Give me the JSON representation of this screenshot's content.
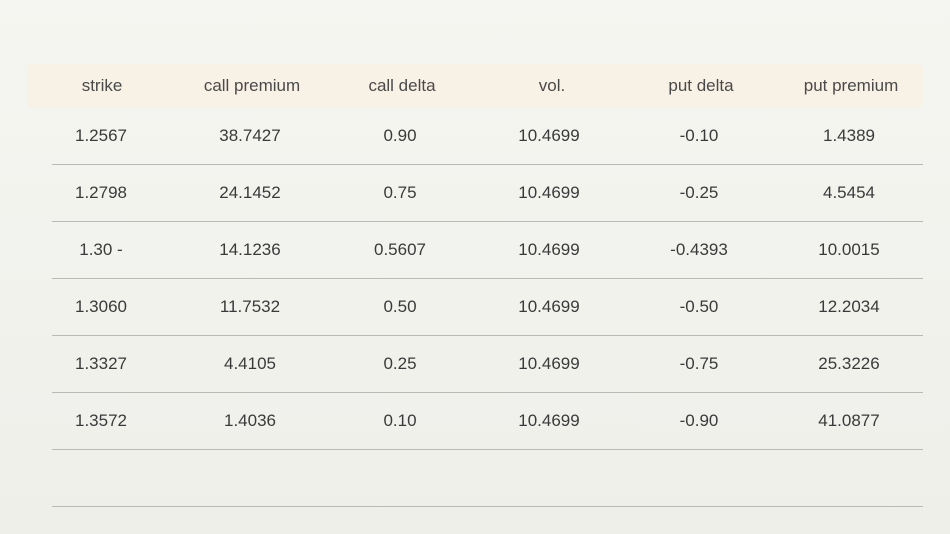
{
  "chart_data": {
    "type": "table",
    "columns": [
      "strike",
      "call premium",
      "call delta",
      "vol.",
      "put delta",
      "put premium"
    ],
    "rows": [
      [
        "1.2567",
        "38.7427",
        "0.90",
        "10.4699",
        "-0.10",
        "1.4389"
      ],
      [
        "1.2798",
        "24.1452",
        "0.75",
        "10.4699",
        "-0.25",
        "4.5454"
      ],
      [
        "1.30 -",
        "14.1236",
        "0.5607",
        "10.4699",
        "-0.4393",
        "10.0015"
      ],
      [
        "1.3060",
        "11.7532",
        "0.50",
        "10.4699",
        "-0.50",
        "12.2034"
      ],
      [
        "1.3327",
        "4.4105",
        "0.25",
        "10.4699",
        "-0.75",
        "25.3226"
      ],
      [
        "1.3572",
        "1.4036",
        "0.10",
        "10.4699",
        "-0.90",
        "41.0877"
      ],
      [
        "",
        "",
        "",
        "",
        "",
        ""
      ]
    ],
    "colors": {
      "header_band": "#f8f1e5",
      "rule": "#b9b9b6",
      "text": "#3a3a3a"
    }
  }
}
